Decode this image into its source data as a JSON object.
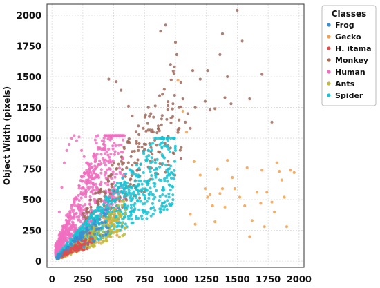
{
  "chart_data": {
    "type": "scatter",
    "title": "",
    "xlabel": "",
    "ylabel": "Object Width (pixels)",
    "xlim": [
      -40,
      2040
    ],
    "ylim": [
      -50,
      2090
    ],
    "x_ticks": [
      0,
      250,
      500,
      750,
      1000,
      1250,
      1500,
      1750,
      2000
    ],
    "y_ticks": [
      0,
      250,
      500,
      750,
      1000,
      1250,
      1500,
      1750,
      2000
    ],
    "grid": true,
    "legend": {
      "title": "Classes",
      "placement": "outside-top-right"
    },
    "series": [
      {
        "name": "Frog",
        "color": "#3b8fd1",
        "description_points": [
          [
            40,
            30
          ],
          [
            60,
            50
          ],
          [
            80,
            70
          ],
          [
            100,
            80
          ],
          [
            120,
            110
          ],
          [
            150,
            140
          ],
          [
            180,
            160
          ],
          [
            200,
            190
          ],
          [
            230,
            200
          ],
          [
            260,
            230
          ]
        ]
      },
      {
        "name": "Gecko",
        "color": "#f4a04a",
        "points": [
          [
            1020,
            1470
          ],
          [
            1060,
            1220
          ],
          [
            1090,
            1050
          ],
          [
            1120,
            380
          ],
          [
            1160,
            300
          ],
          [
            1200,
            700
          ],
          [
            1240,
            590
          ],
          [
            1260,
            520
          ],
          [
            1280,
            540
          ],
          [
            1300,
            450
          ],
          [
            1320,
            320
          ],
          [
            1340,
            750
          ],
          [
            1360,
            550
          ],
          [
            1380,
            590
          ],
          [
            1420,
            820
          ],
          [
            1460,
            680
          ],
          [
            1480,
            590
          ],
          [
            1520,
            520
          ],
          [
            1580,
            760
          ],
          [
            1600,
            200
          ],
          [
            1620,
            330
          ],
          [
            1660,
            560
          ],
          [
            1700,
            740
          ],
          [
            1720,
            280
          ],
          [
            1740,
            560
          ],
          [
            1780,
            480
          ],
          [
            1800,
            400
          ],
          [
            1820,
            800
          ],
          [
            1860,
            660
          ],
          [
            1880,
            520
          ],
          [
            1900,
            280
          ],
          [
            1930,
            740
          ],
          [
            1960,
            720
          ],
          [
            1400,
            440
          ],
          [
            1150,
            810
          ],
          [
            1560,
            450
          ],
          [
            1840,
            730
          ],
          [
            1690,
            470
          ]
        ]
      },
      {
        "name": "H. itama",
        "color": "#e24b4b",
        "points": [
          [
            150,
            90
          ],
          [
            180,
            100
          ],
          [
            210,
            120
          ],
          [
            240,
            130
          ],
          [
            270,
            160
          ],
          [
            200,
            80
          ],
          [
            230,
            110
          ],
          [
            260,
            95
          ],
          [
            290,
            140
          ],
          [
            320,
            150
          ]
        ]
      },
      {
        "name": "Monkey",
        "color": "#a0695a",
        "points": [
          [
            460,
            1480
          ],
          [
            520,
            1460
          ],
          [
            560,
            1390
          ],
          [
            620,
            1260
          ],
          [
            650,
            1180
          ],
          [
            700,
            1100
          ],
          [
            740,
            1080
          ],
          [
            780,
            1250
          ],
          [
            800,
            1200
          ],
          [
            820,
            1050
          ],
          [
            860,
            1100
          ],
          [
            880,
            1870
          ],
          [
            920,
            1920
          ],
          [
            960,
            1600
          ],
          [
            980,
            1280
          ],
          [
            1000,
            1780
          ],
          [
            1010,
            1680
          ],
          [
            1030,
            1250
          ],
          [
            1060,
            1320
          ],
          [
            1080,
            1130
          ],
          [
            1100,
            1200
          ],
          [
            1120,
            1080
          ],
          [
            1140,
            1550
          ],
          [
            1160,
            1250
          ],
          [
            1200,
            1480
          ],
          [
            1240,
            1300
          ],
          [
            1260,
            1550
          ],
          [
            1280,
            1230
          ],
          [
            1320,
            1240
          ],
          [
            1360,
            1680
          ],
          [
            1380,
            1850
          ],
          [
            1400,
            1330
          ],
          [
            1420,
            1500
          ],
          [
            1450,
            1280
          ],
          [
            1500,
            2040
          ],
          [
            1540,
            1790
          ],
          [
            1600,
            1320
          ],
          [
            1700,
            1520
          ],
          [
            1780,
            1130
          ],
          [
            700,
            900
          ],
          [
            760,
            950
          ],
          [
            640,
            850
          ],
          [
            580,
            800
          ],
          [
            520,
            750
          ],
          [
            480,
            700
          ]
        ]
      },
      {
        "name": "Human",
        "color": "#f06ec0",
        "points": [
          [
            60,
            400
          ],
          [
            80,
            600
          ],
          [
            100,
            800
          ],
          [
            120,
            900
          ],
          [
            140,
            950
          ],
          [
            160,
            1000
          ],
          [
            180,
            1020
          ],
          [
            200,
            980
          ],
          [
            220,
            1010
          ],
          [
            240,
            900
          ],
          [
            260,
            850
          ],
          [
            280,
            800
          ],
          [
            300,
            780
          ],
          [
            320,
            760
          ],
          [
            340,
            720
          ],
          [
            360,
            700
          ],
          [
            380,
            680
          ]
        ]
      },
      {
        "name": "Ants",
        "color": "#c2b93a",
        "points": [
          [
            60,
            40
          ],
          [
            100,
            60
          ],
          [
            150,
            90
          ],
          [
            200,
            120
          ],
          [
            250,
            150
          ],
          [
            300,
            180
          ],
          [
            350,
            220
          ],
          [
            400,
            260
          ],
          [
            450,
            300
          ],
          [
            500,
            340
          ]
        ]
      },
      {
        "name": "Spider",
        "color": "#17c3d4",
        "points": [
          [
            300,
            300
          ],
          [
            400,
            400
          ],
          [
            500,
            500
          ],
          [
            600,
            600
          ],
          [
            700,
            700
          ],
          [
            800,
            800
          ],
          [
            900,
            850
          ],
          [
            950,
            700
          ],
          [
            1000,
            900
          ],
          [
            980,
            500
          ],
          [
            900,
            600
          ],
          [
            850,
            750
          ],
          [
            750,
            650
          ],
          [
            650,
            550
          ]
        ]
      }
    ]
  }
}
